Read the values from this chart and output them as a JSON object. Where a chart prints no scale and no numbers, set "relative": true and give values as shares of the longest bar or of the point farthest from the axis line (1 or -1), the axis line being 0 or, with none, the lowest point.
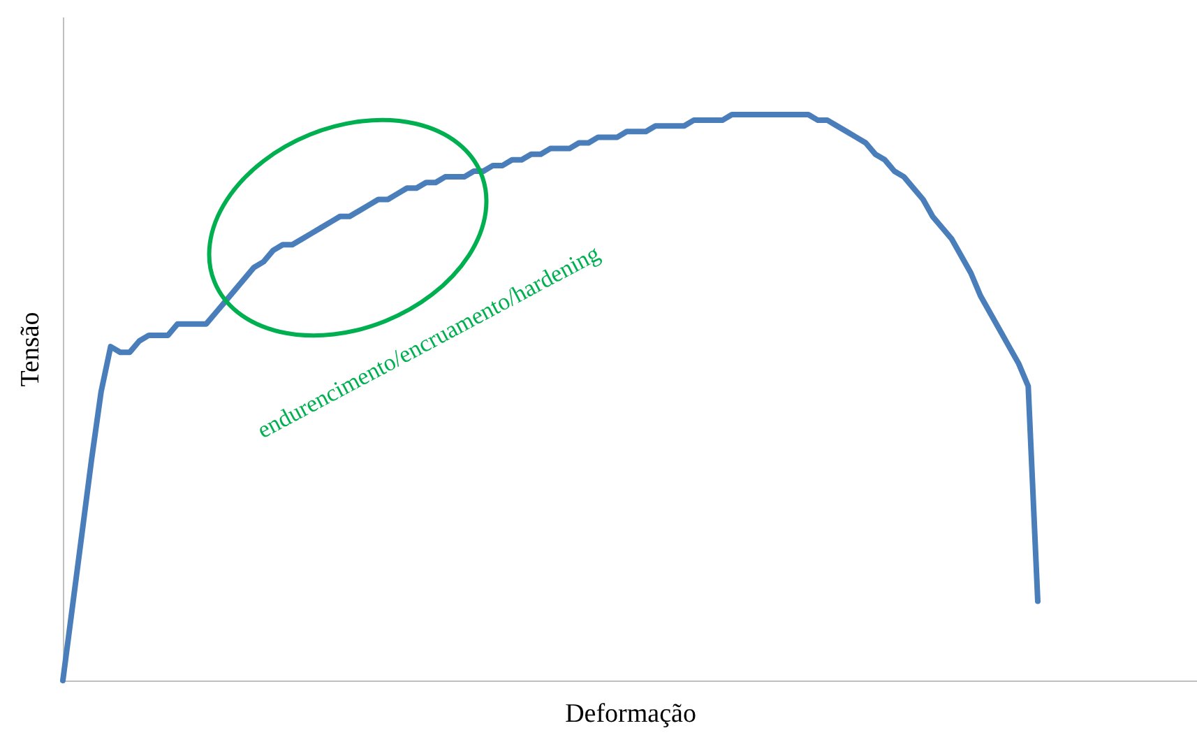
{
  "chart_data": {
    "type": "line",
    "relative": true,
    "xlabel": "Deformação",
    "ylabel": "Tensão",
    "annotations": [
      "endurencimento/encruamento/hardening"
    ],
    "categories": [
      null,
      null,
      null,
      null,
      null,
      null,
      null,
      null,
      null,
      null,
      null,
      null,
      null,
      null,
      null,
      null,
      null,
      null,
      null,
      null,
      null,
      null,
      null,
      null,
      null,
      null,
      null,
      null,
      null,
      null,
      null,
      null,
      null,
      null,
      null,
      null,
      null,
      null,
      null,
      null,
      null,
      null,
      null,
      null,
      null,
      null,
      null,
      null,
      null,
      null,
      null,
      null,
      null,
      null,
      null,
      null,
      null,
      null,
      null,
      null,
      null,
      null,
      null,
      null,
      null,
      null,
      null,
      null,
      null,
      null,
      null,
      null,
      null,
      null,
      null,
      null,
      null,
      null,
      null,
      null,
      null,
      null,
      null,
      null,
      null,
      null,
      null,
      null,
      null,
      null,
      null,
      null,
      null,
      null,
      null,
      null,
      null,
      null,
      null,
      null,
      null,
      null,
      null
    ],
    "series": [
      {
        "color": "#4a7ebb",
        "values": [
          0,
          0.13,
          0.26,
          0.39,
          0.51,
          0.59,
          0.58,
          0.58,
          0.6,
          0.61,
          0.61,
          0.61,
          0.63,
          0.63,
          0.63,
          0.63,
          0.65,
          0.67,
          0.69,
          0.71,
          0.73,
          0.74,
          0.76,
          0.77,
          0.77,
          0.78,
          0.79,
          0.8,
          0.81,
          0.82,
          0.82,
          0.83,
          0.84,
          0.85,
          0.85,
          0.86,
          0.87,
          0.87,
          0.88,
          0.88,
          0.89,
          0.89,
          0.89,
          0.9,
          0.9,
          0.91,
          0.91,
          0.92,
          0.92,
          0.93,
          0.93,
          0.94,
          0.94,
          0.94,
          0.95,
          0.95,
          0.96,
          0.96,
          0.96,
          0.97,
          0.97,
          0.97,
          0.98,
          0.98,
          0.98,
          0.98,
          0.99,
          0.99,
          0.99,
          0.99,
          1,
          1,
          1,
          1,
          1,
          1,
          1,
          1,
          1,
          0.99,
          0.99,
          0.98,
          0.97,
          0.96,
          0.95,
          0.93,
          0.92,
          0.9,
          0.89,
          0.87,
          0.85,
          0.82,
          0.8,
          0.78,
          0.75,
          0.72,
          0.68,
          0.65,
          0.62,
          0.59,
          0.56,
          0.52,
          0.14
        ]
      }
    ]
  }
}
